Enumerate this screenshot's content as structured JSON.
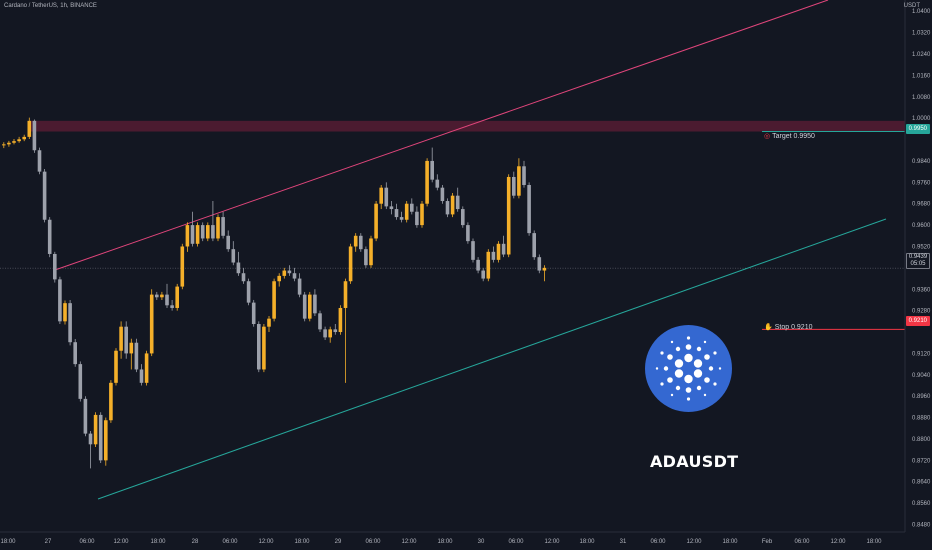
{
  "header": {
    "symbol_line": "Cardano / TetherUS, 1h, BINANCE",
    "currency": "USDT"
  },
  "annotations": {
    "target_label": "Target 0.9950",
    "target_value": "0.9950",
    "stop_label": "Stop 0.9210",
    "stop_value": "0.9210",
    "last_price": "0.9439",
    "countdown": "05:05",
    "ticker": "ADAUSDT",
    "target_icon": "target-icon",
    "stop_icon": "stop-hand-icon"
  },
  "colors": {
    "background": "#131722",
    "bull": "#f5b02a",
    "bear": "#9da1ab",
    "resistance_zone": "#7a1f3d",
    "upper_trendline": "#e0457b",
    "lower_trendline": "#26a69a",
    "target_line": "#26a69a",
    "stop_line": "#f23645",
    "logo": "#3468d1"
  },
  "chart_data": {
    "type": "candlestick",
    "timeframe": "1h",
    "y_axis": {
      "ylim": [
        0.8452,
        1.0442
      ],
      "ticks": [
        "0.8480",
        "0.8560",
        "0.8640",
        "0.8720",
        "0.8800",
        "0.8880",
        "0.8960",
        "0.9040",
        "0.9120",
        "0.9210",
        "0.9280",
        "0.9360",
        "0.9439",
        "0.9520",
        "0.9600",
        "0.9680",
        "0.9760",
        "0.9840",
        "0.9950",
        "1.0000",
        "1.0080",
        "1.0160",
        "1.0240",
        "1.0320",
        "1.0400"
      ]
    },
    "x_axis": {
      "ticks": [
        "18:00",
        "27",
        "06:00",
        "12:00",
        "18:00",
        "28",
        "06:00",
        "12:00",
        "18:00",
        "29",
        "06:00",
        "12:00",
        "18:00",
        "30",
        "06:00",
        "12:00",
        "18:00",
        "31",
        "06:00",
        "12:00",
        "18:00",
        "Feb",
        "06:00",
        "12:00",
        "18:00"
      ]
    },
    "resistance_zone": {
      "y_from": 0.995,
      "y_to": 0.999
    },
    "upper_trendline": [
      [
        0,
        0.939
      ],
      [
        140,
        1.045
      ]
    ],
    "lower_trendline": [
      [
        8,
        0.857
      ],
      [
        159,
        0.958
      ]
    ],
    "target": 0.995,
    "stop": 0.921,
    "last_price": 0.9439,
    "candles": [
      [
        0.99,
        0.991,
        0.9888,
        0.9902
      ],
      [
        0.9902,
        0.9915,
        0.9893,
        0.9908
      ],
      [
        0.9908,
        0.9922,
        0.9902,
        0.9914
      ],
      [
        0.9914,
        0.993,
        0.9908,
        0.9921
      ],
      [
        0.9921,
        0.9938,
        0.9914,
        0.993
      ],
      [
        0.993,
        1.0002,
        0.9922,
        0.999
      ],
      [
        0.999,
        0.9995,
        0.987,
        0.988
      ],
      [
        0.988,
        0.989,
        0.979,
        0.98
      ],
      [
        0.98,
        0.981,
        0.961,
        0.962
      ],
      [
        0.962,
        0.963,
        0.948,
        0.9492
      ],
      [
        0.9492,
        0.95,
        0.9385,
        0.9397
      ],
      [
        0.9397,
        0.9407,
        0.923,
        0.924
      ],
      [
        0.924,
        0.9318,
        0.9228,
        0.9308
      ],
      [
        0.9308,
        0.932,
        0.915,
        0.9162
      ],
      [
        0.9162,
        0.9174,
        0.907,
        0.908
      ],
      [
        0.908,
        0.909,
        0.894,
        0.895
      ],
      [
        0.895,
        0.896,
        0.881,
        0.882
      ],
      [
        0.882,
        0.883,
        0.869,
        0.878
      ],
      [
        0.878,
        0.89,
        0.877,
        0.889
      ],
      [
        0.889,
        0.89,
        0.871,
        0.872
      ],
      [
        0.872,
        0.888,
        0.87,
        0.887
      ],
      [
        0.887,
        0.902,
        0.886,
        0.901
      ],
      [
        0.901,
        0.914,
        0.9,
        0.913
      ],
      [
        0.913,
        0.924,
        0.91,
        0.922
      ],
      [
        0.922,
        0.924,
        0.91,
        0.912
      ],
      [
        0.912,
        0.9175,
        0.906,
        0.916
      ],
      [
        0.916,
        0.9175,
        0.905,
        0.906
      ],
      [
        0.906,
        0.908,
        0.9,
        0.901
      ],
      [
        0.901,
        0.913,
        0.9,
        0.912
      ],
      [
        0.912,
        0.936,
        0.911,
        0.934
      ],
      [
        0.934,
        0.935,
        0.932,
        0.933
      ],
      [
        0.933,
        0.935,
        0.932,
        0.934
      ],
      [
        0.934,
        0.938,
        0.929,
        0.93
      ],
      [
        0.93,
        0.932,
        0.928,
        0.929
      ],
      [
        0.929,
        0.938,
        0.928,
        0.937
      ],
      [
        0.937,
        0.953,
        0.936,
        0.952
      ],
      [
        0.952,
        0.961,
        0.95,
        0.96
      ],
      [
        0.96,
        0.965,
        0.952,
        0.953
      ],
      [
        0.953,
        0.961,
        0.952,
        0.96
      ],
      [
        0.96,
        0.961,
        0.954,
        0.955
      ],
      [
        0.955,
        0.961,
        0.954,
        0.96
      ],
      [
        0.96,
        0.969,
        0.954,
        0.955
      ],
      [
        0.955,
        0.964,
        0.954,
        0.963
      ],
      [
        0.963,
        0.965,
        0.955,
        0.956
      ],
      [
        0.956,
        0.958,
        0.95,
        0.951
      ],
      [
        0.951,
        0.954,
        0.945,
        0.946
      ],
      [
        0.946,
        0.95,
        0.941,
        0.942
      ],
      [
        0.942,
        0.944,
        0.938,
        0.939
      ],
      [
        0.939,
        0.94,
        0.93,
        0.931
      ],
      [
        0.931,
        0.932,
        0.922,
        0.923
      ],
      [
        0.923,
        0.924,
        0.905,
        0.906
      ],
      [
        0.906,
        0.923,
        0.905,
        0.922
      ],
      [
        0.922,
        0.926,
        0.92,
        0.925
      ],
      [
        0.925,
        0.94,
        0.924,
        0.939
      ],
      [
        0.939,
        0.942,
        0.937,
        0.941
      ],
      [
        0.941,
        0.944,
        0.94,
        0.943
      ],
      [
        0.943,
        0.945,
        0.941,
        0.942
      ],
      [
        0.942,
        0.944,
        0.939,
        0.94
      ],
      [
        0.94,
        0.942,
        0.933,
        0.934
      ],
      [
        0.934,
        0.935,
        0.924,
        0.925
      ],
      [
        0.925,
        0.935,
        0.924,
        0.934
      ],
      [
        0.934,
        0.936,
        0.926,
        0.927
      ],
      [
        0.927,
        0.928,
        0.92,
        0.921
      ],
      [
        0.921,
        0.922,
        0.917,
        0.918
      ],
      [
        0.918,
        0.922,
        0.916,
        0.921
      ],
      [
        0.921,
        0.923,
        0.919,
        0.92
      ],
      [
        0.92,
        0.93,
        0.919,
        0.929
      ],
      [
        0.929,
        0.94,
        0.901,
        0.939
      ],
      [
        0.939,
        0.953,
        0.938,
        0.952
      ],
      [
        0.952,
        0.957,
        0.95,
        0.956
      ],
      [
        0.956,
        0.957,
        0.95,
        0.951
      ],
      [
        0.951,
        0.952,
        0.944,
        0.945
      ],
      [
        0.945,
        0.956,
        0.944,
        0.955
      ],
      [
        0.955,
        0.969,
        0.954,
        0.968
      ],
      [
        0.968,
        0.975,
        0.966,
        0.974
      ],
      [
        0.974,
        0.976,
        0.966,
        0.967
      ],
      [
        0.967,
        0.969,
        0.964,
        0.966
      ],
      [
        0.966,
        0.968,
        0.962,
        0.963
      ],
      [
        0.963,
        0.965,
        0.961,
        0.962
      ],
      [
        0.962,
        0.969,
        0.961,
        0.968
      ],
      [
        0.968,
        0.97,
        0.964,
        0.965
      ],
      [
        0.965,
        0.967,
        0.959,
        0.96
      ],
      [
        0.96,
        0.969,
        0.959,
        0.968
      ],
      [
        0.968,
        0.985,
        0.967,
        0.984
      ],
      [
        0.984,
        0.989,
        0.976,
        0.977
      ],
      [
        0.977,
        0.979,
        0.973,
        0.974
      ],
      [
        0.974,
        0.975,
        0.968,
        0.969
      ],
      [
        0.969,
        0.97,
        0.963,
        0.964
      ],
      [
        0.964,
        0.972,
        0.963,
        0.971
      ],
      [
        0.971,
        0.974,
        0.965,
        0.966
      ],
      [
        0.966,
        0.967,
        0.959,
        0.96
      ],
      [
        0.96,
        0.961,
        0.953,
        0.954
      ],
      [
        0.954,
        0.955,
        0.946,
        0.947
      ],
      [
        0.947,
        0.948,
        0.942,
        0.943
      ],
      [
        0.943,
        0.944,
        0.939,
        0.94
      ],
      [
        0.94,
        0.951,
        0.939,
        0.95
      ],
      [
        0.95,
        0.952,
        0.946,
        0.947
      ],
      [
        0.947,
        0.954,
        0.946,
        0.953
      ],
      [
        0.953,
        0.956,
        0.948,
        0.949
      ],
      [
        0.949,
        0.979,
        0.948,
        0.978
      ],
      [
        0.978,
        0.98,
        0.97,
        0.971
      ],
      [
        0.971,
        0.985,
        0.97,
        0.982
      ],
      [
        0.982,
        0.984,
        0.974,
        0.975
      ],
      [
        0.975,
        0.976,
        0.956,
        0.957
      ],
      [
        0.957,
        0.958,
        0.947,
        0.948
      ],
      [
        0.948,
        0.949,
        0.942,
        0.943
      ],
      [
        0.943,
        0.945,
        0.939,
        0.944
      ]
    ]
  }
}
